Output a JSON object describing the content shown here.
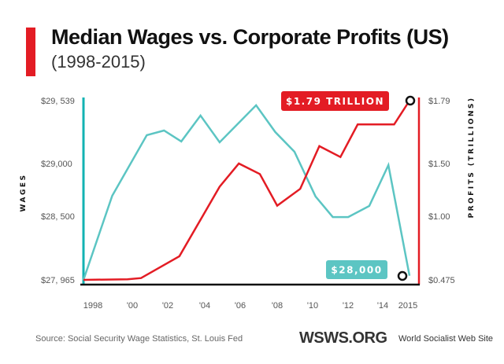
{
  "header": {
    "title": "Median Wages vs. Corporate Profits (US)",
    "subtitle": "(1998-2015)"
  },
  "footer": {
    "source": "Source: Social Security Wage Statistics, St. Louis Fed",
    "logo": "WSWS.ORG",
    "site_name": "World Socialist Web Site"
  },
  "colors": {
    "wages": "#5cc5c3",
    "wages_axis": "#12b3b3",
    "profits": "#e31c24",
    "accent_bar": "#e31c24",
    "baseline": "#111111"
  },
  "chart_data": {
    "type": "line",
    "title": "Median Wages vs. Corporate Profits (US)",
    "subtitle": "(1998-2015)",
    "xlabel": "",
    "x_ticks": [
      "1998",
      "'00",
      "'02",
      "'04",
      "'06",
      "'08",
      "'10",
      "'12",
      "'14",
      "2015"
    ],
    "x_tick_years": [
      1998,
      2000,
      2002,
      2004,
      2006,
      2008,
      2010,
      2012,
      2014,
      2015
    ],
    "xlim": [
      1998,
      2015
    ],
    "y_left": {
      "label": "WAGES",
      "ticks": [
        "$29, 539",
        "$29,000",
        "$28, 500",
        "$27, 965"
      ],
      "tick_values": [
        29539,
        29000,
        28500,
        27965
      ],
      "ylim": [
        27965,
        29539
      ]
    },
    "y_right": {
      "label": "PROFITS (TRILLIONS)",
      "ticks": [
        "$1.79",
        "$1.50",
        "$1.00",
        "$0.475"
      ],
      "tick_values": [
        1.79,
        1.5,
        1.0,
        0.475
      ],
      "ylim": [
        0.475,
        1.79
      ]
    },
    "series": [
      {
        "name": "Median Wages",
        "axis": "left",
        "points": [
          [
            1998,
            27965
          ],
          [
            1999.5,
            28694
          ],
          [
            2001.3,
            29243
          ],
          [
            2002.2,
            29283
          ],
          [
            2003.1,
            29189
          ],
          [
            2004.1,
            29411
          ],
          [
            2005.1,
            29182
          ],
          [
            2007.0,
            29499
          ],
          [
            2008.0,
            29270
          ],
          [
            2009.0,
            29101
          ],
          [
            2010.1,
            28687
          ],
          [
            2011.0,
            28493
          ],
          [
            2011.8,
            28493
          ],
          [
            2012.9,
            28597
          ],
          [
            2013.9,
            28985
          ],
          [
            2015,
            28000
          ]
        ],
        "end_label": "$28,000"
      },
      {
        "name": "Corporate Profits",
        "axis": "right",
        "points": [
          [
            1998,
            0.475
          ],
          [
            2000.3,
            0.48
          ],
          [
            2001.0,
            0.49
          ],
          [
            2003.0,
            0.67
          ],
          [
            2005.1,
            1.28
          ],
          [
            2006.1,
            1.5
          ],
          [
            2007.2,
            1.4
          ],
          [
            2008.1,
            1.1
          ],
          [
            2009.3,
            1.26
          ],
          [
            2010.3,
            1.58
          ],
          [
            2011.4,
            1.53
          ],
          [
            2012.3,
            1.68
          ],
          [
            2014.2,
            1.68
          ],
          [
            2015,
            1.79
          ]
        ],
        "end_label": "$1.79 TRILLION"
      }
    ],
    "grid": false,
    "legend": "none"
  }
}
